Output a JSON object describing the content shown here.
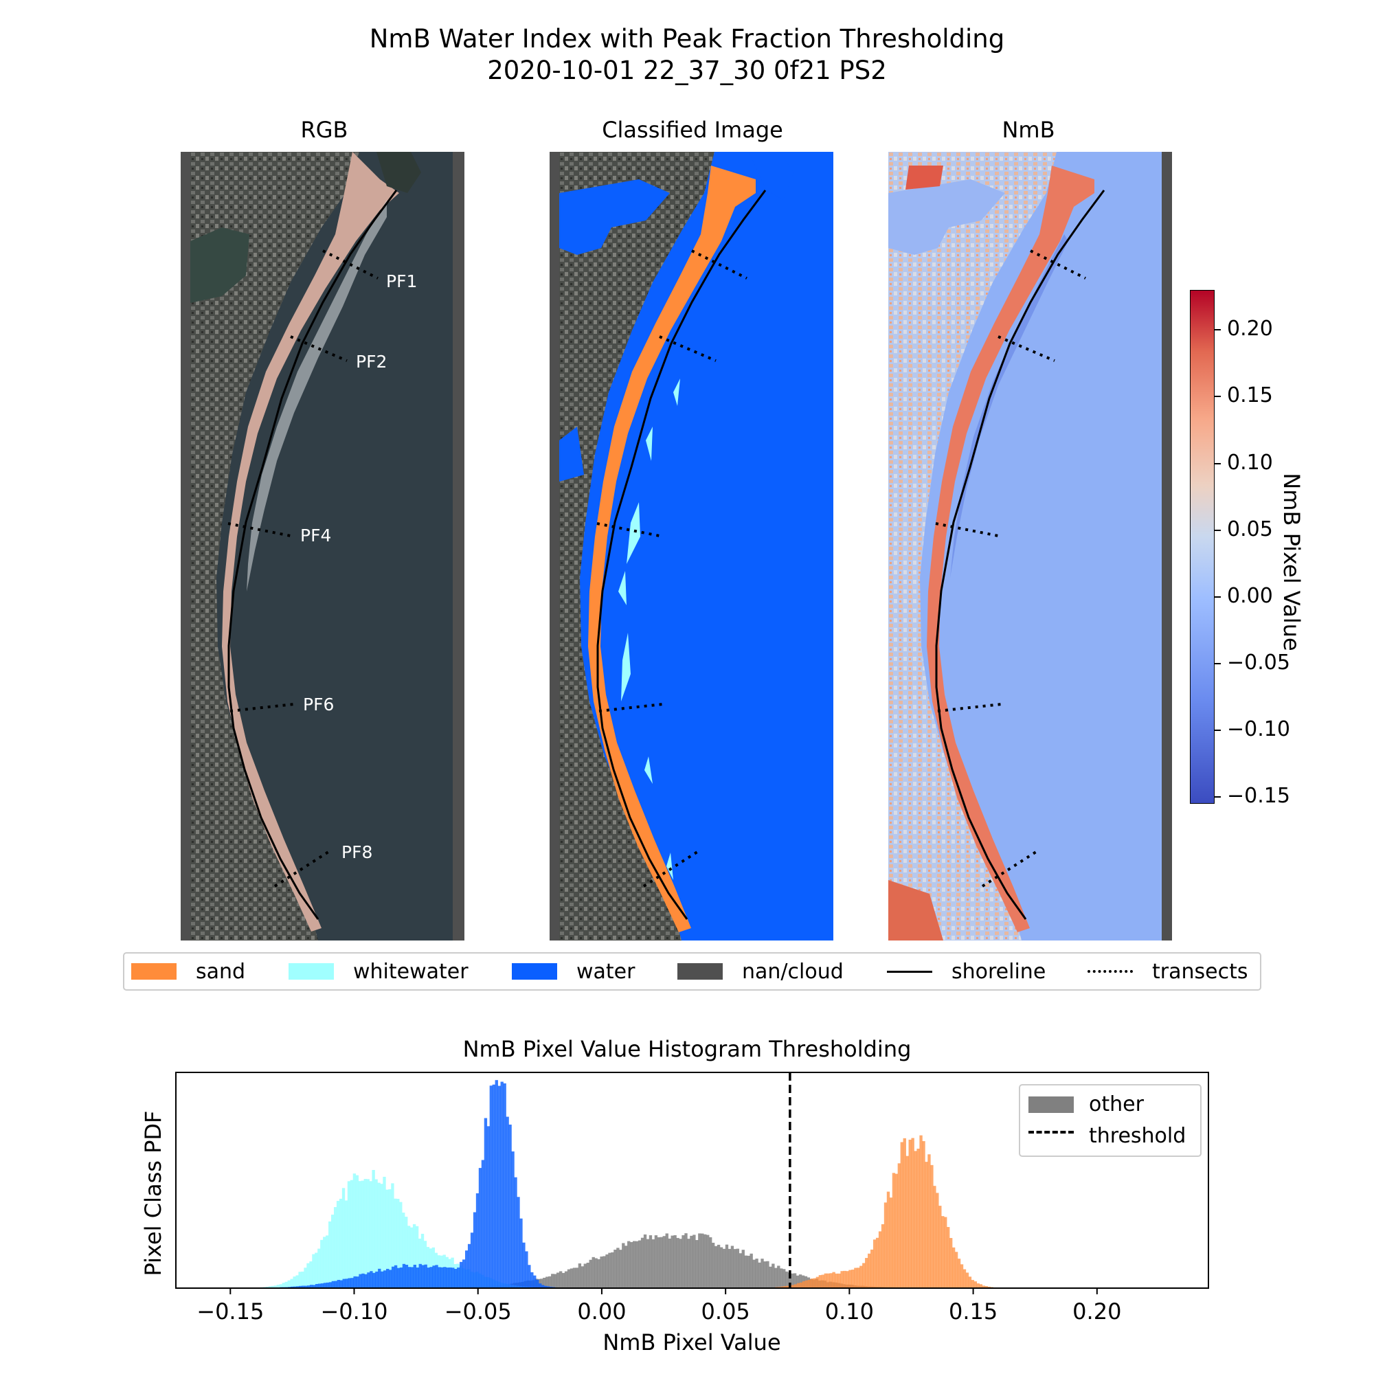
{
  "title_line1": "NmB Water Index with Peak Fraction Thresholding",
  "title_line2": "2020-10-01 22_37_30 0f21 PS2",
  "panels": {
    "rgb_title": "RGB",
    "classified_title": "Classified Image",
    "nmb_title": "NmB"
  },
  "transect_labels": [
    "PF1",
    "PF2",
    "PF4",
    "PF6",
    "PF8"
  ],
  "colorbar": {
    "label": "NmB Pixel Value",
    "ticks": [
      "0.20",
      "0.15",
      "0.10",
      "0.05",
      "0.00",
      "−0.05",
      "−0.10",
      "−0.15"
    ],
    "range": [
      -0.155,
      0.23
    ],
    "colormap": "coolwarm"
  },
  "legend": {
    "items": [
      {
        "label": "sand",
        "color": "#ff8c3a"
      },
      {
        "label": "whitewater",
        "color": "#a0ffff"
      },
      {
        "label": "water",
        "color": "#0a5fff"
      },
      {
        "label": "nan/cloud",
        "color": "#505050"
      },
      {
        "label": "shoreline",
        "style": "solid-line"
      },
      {
        "label": "transects",
        "style": "dotted-line"
      }
    ]
  },
  "colors": {
    "sand": "#ff8c3a",
    "whitewater": "#a0ffff",
    "water": "#0a5fff",
    "nan_cloud": "#505050",
    "other": "#808080"
  },
  "chart_data": {
    "type": "bar",
    "title": "NmB Pixel Value Histogram Thresholding",
    "xlabel": "NmB Pixel Value",
    "ylabel": "Pixel Class PDF",
    "xlim": [
      -0.172,
      0.245
    ],
    "ylim": [
      0,
      1.04
    ],
    "xticks": [
      "−0.15",
      "−0.10",
      "−0.05",
      "0.00",
      "0.05",
      "0.10",
      "0.15",
      "0.20"
    ],
    "xtick_values": [
      -0.15,
      -0.1,
      -0.05,
      0.0,
      0.05,
      0.1,
      0.15,
      0.2
    ],
    "threshold": 0.076,
    "legend": [
      {
        "label": "other",
        "style": "patch"
      },
      {
        "label": "threshold",
        "style": "dashed-line"
      }
    ],
    "series": [
      {
        "name": "other",
        "color": "#808080",
        "peak_x": 0.03,
        "peak_pdf": 0.26,
        "range": [
          -0.07,
          0.21
        ]
      },
      {
        "name": "whitewater",
        "color": "#a0ffff",
        "peak_x": -0.095,
        "peak_pdf": 0.56,
        "range": [
          -0.15,
          -0.02
        ]
      },
      {
        "name": "water",
        "color": "#0a5fff",
        "peak_x": -0.042,
        "peak_pdf": 1.0,
        "range": [
          -0.13,
          0.0
        ]
      },
      {
        "name": "sand",
        "color": "#ff8c3a",
        "peak_x": 0.126,
        "peak_pdf": 0.73,
        "range": [
          0.07,
          0.17
        ]
      }
    ]
  }
}
